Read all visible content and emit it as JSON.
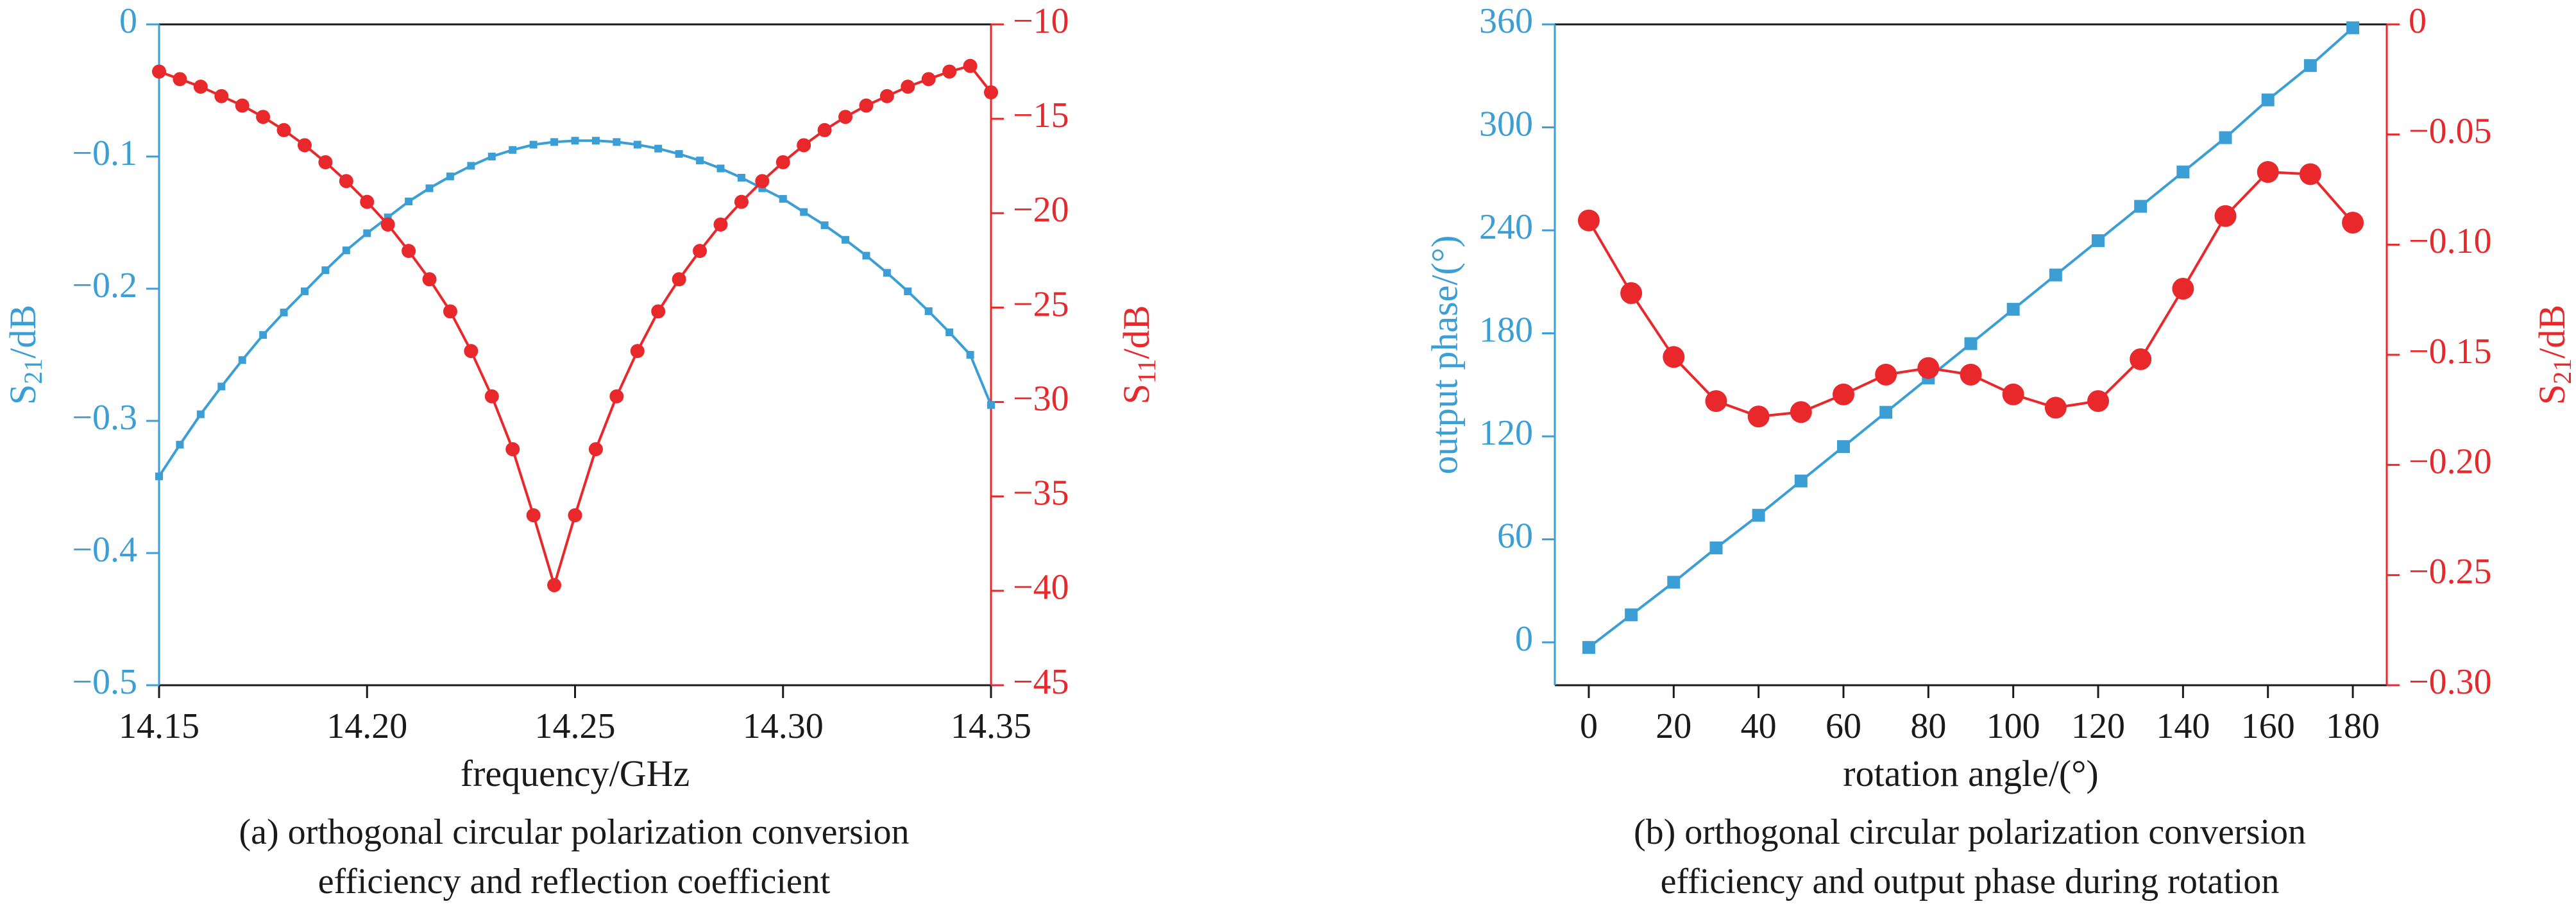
{
  "colors": {
    "blue": "#3b9fd6",
    "red": "#e8282b",
    "axis": "#1a1a1a"
  },
  "chart_data": [
    {
      "type": "line",
      "caption": [
        "(a) orthogonal circular polarization conversion",
        "efficiency and reflection coefficient"
      ],
      "xlabel": "frequency/GHz",
      "xlim": [
        14.15,
        14.35
      ],
      "xticks": [
        14.15,
        14.2,
        14.25,
        14.3,
        14.35
      ],
      "xtick_labels": [
        "14.15",
        "14.20",
        "14.25",
        "14.30",
        "14.35"
      ],
      "left_axis": {
        "label": "S21/dB",
        "label_main": "S",
        "label_sub": "21",
        "label_tail": "/dB",
        "ylim": [
          -0.5,
          0
        ],
        "yticks": [
          0,
          -0.1,
          -0.2,
          -0.3,
          -0.4,
          -0.5
        ],
        "ytick_labels": [
          "0",
          "−0.1",
          "−0.2",
          "−0.3",
          "−0.4",
          "−0.5"
        ]
      },
      "right_axis": {
        "label": "S11/dB",
        "label_main": "S",
        "label_sub": "11",
        "label_tail": "/dB",
        "ylim": [
          -45,
          -10
        ],
        "yticks": [
          -10,
          -15,
          -20,
          -25,
          -30,
          -35,
          -40,
          -45
        ],
        "ytick_labels": [
          "−10",
          "−15",
          "−20",
          "−25",
          "−30",
          "−35",
          "−40",
          "−45"
        ]
      },
      "series": [
        {
          "name": "S21",
          "axis": "left",
          "color": "#3b9fd6",
          "marker": "square",
          "x": [
            14.15,
            14.155,
            14.16,
            14.165,
            14.17,
            14.175,
            14.18,
            14.185,
            14.19,
            14.195,
            14.2,
            14.205,
            14.21,
            14.215,
            14.22,
            14.225,
            14.23,
            14.235,
            14.24,
            14.245,
            14.25,
            14.255,
            14.26,
            14.265,
            14.27,
            14.275,
            14.28,
            14.285,
            14.29,
            14.295,
            14.3,
            14.305,
            14.31,
            14.315,
            14.32,
            14.325,
            14.33,
            14.335,
            14.34,
            14.345,
            14.35
          ],
          "y": [
            -0.342,
            -0.318,
            -0.295,
            -0.274,
            -0.254,
            -0.235,
            -0.218,
            -0.202,
            -0.186,
            -0.171,
            -0.158,
            -0.146,
            -0.134,
            -0.124,
            -0.115,
            -0.107,
            -0.1,
            -0.095,
            -0.091,
            -0.089,
            -0.088,
            -0.088,
            -0.089,
            -0.091,
            -0.094,
            -0.098,
            -0.103,
            -0.109,
            -0.116,
            -0.124,
            -0.132,
            -0.142,
            -0.152,
            -0.163,
            -0.175,
            -0.188,
            -0.202,
            -0.217,
            -0.233,
            -0.25,
            -0.288
          ]
        },
        {
          "name": "S11",
          "axis": "right",
          "color": "#e8282b",
          "marker": "circle",
          "x": [
            14.15,
            14.155,
            14.16,
            14.165,
            14.17,
            14.175,
            14.18,
            14.185,
            14.19,
            14.195,
            14.2,
            14.205,
            14.21,
            14.215,
            14.22,
            14.225,
            14.23,
            14.235,
            14.24,
            14.245,
            14.25,
            14.255,
            14.26,
            14.265,
            14.27,
            14.275,
            14.28,
            14.285,
            14.29,
            14.295,
            14.3,
            14.305,
            14.31,
            14.315,
            14.32,
            14.325,
            14.33,
            14.335,
            14.34,
            14.345,
            14.35
          ],
          "y": [
            -12.5,
            -12.9,
            -13.3,
            -13.8,
            -14.3,
            -14.9,
            -15.6,
            -16.4,
            -17.3,
            -18.3,
            -19.4,
            -20.6,
            -22.0,
            -23.5,
            -25.2,
            -27.3,
            -29.7,
            -32.5,
            -36.0,
            -39.7,
            -36.0,
            -32.5,
            -29.7,
            -27.3,
            -25.2,
            -23.5,
            -22.0,
            -20.6,
            -19.4,
            -18.3,
            -17.3,
            -16.4,
            -15.6,
            -14.9,
            -14.3,
            -13.8,
            -13.3,
            -12.9,
            -12.5,
            -12.2,
            -13.6
          ]
        }
      ]
    },
    {
      "type": "line",
      "caption": [
        "(b) orthogonal circular polarization conversion",
        "efficiency and output phase during rotation"
      ],
      "xlabel": "rotation angle/(°)",
      "xlim": [
        -8,
        188
      ],
      "xticks": [
        0,
        20,
        40,
        60,
        80,
        100,
        120,
        140,
        160,
        180
      ],
      "xtick_labels": [
        "0",
        "20",
        "40",
        "60",
        "80",
        "100",
        "120",
        "140",
        "160",
        "180"
      ],
      "left_axis": {
        "label": "output phase/(°)",
        "ylim": [
          -25,
          360
        ],
        "yticks": [
          0,
          60,
          120,
          180,
          240,
          300,
          360
        ],
        "ytick_labels": [
          "0",
          "60",
          "120",
          "180",
          "240",
          "300",
          "360"
        ]
      },
      "right_axis": {
        "label": "S21/dB",
        "label_main": "S",
        "label_sub": "21",
        "label_tail": "/dB",
        "ylim": [
          -0.3,
          0
        ],
        "yticks": [
          0,
          -0.05,
          -0.1,
          -0.15,
          -0.2,
          -0.25,
          -0.3
        ],
        "ytick_labels": [
          "0",
          "−0.05",
          "−0.10",
          "−0.15",
          "−0.20",
          "−0.25",
          "−0.30"
        ]
      },
      "series": [
        {
          "name": "output phase",
          "axis": "left",
          "color": "#3b9fd6",
          "marker": "square",
          "x": [
            0,
            10,
            20,
            30,
            40,
            50,
            60,
            70,
            80,
            90,
            100,
            110,
            120,
            130,
            140,
            150,
            160,
            170,
            180
          ],
          "y": [
            -3,
            16,
            35,
            55,
            74,
            94,
            114,
            134,
            154,
            174,
            194,
            214,
            234,
            254,
            274,
            294,
            316,
            336,
            358
          ]
        },
        {
          "name": "S21",
          "axis": "right",
          "color": "#e8282b",
          "marker": "circle",
          "x": [
            0,
            10,
            20,
            30,
            40,
            50,
            60,
            70,
            80,
            90,
            100,
            110,
            120,
            130,
            140,
            150,
            160,
            170,
            180
          ],
          "y": [
            -0.089,
            -0.122,
            -0.151,
            -0.171,
            -0.178,
            -0.176,
            -0.168,
            -0.159,
            -0.156,
            -0.159,
            -0.168,
            -0.174,
            -0.171,
            -0.152,
            -0.12,
            -0.087,
            -0.067,
            -0.068,
            -0.09
          ]
        }
      ]
    }
  ]
}
